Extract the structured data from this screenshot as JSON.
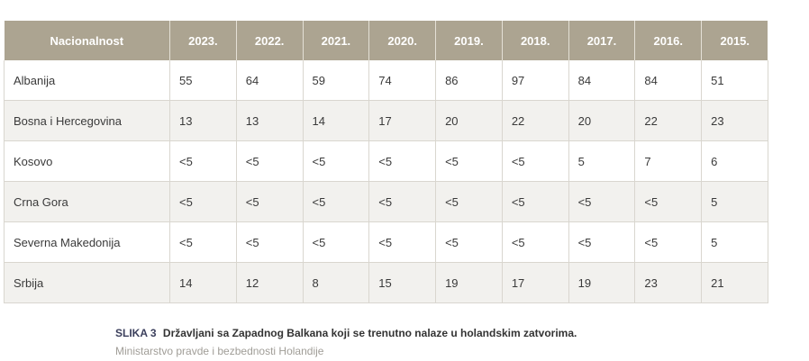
{
  "table": {
    "headers": [
      "Nacionalnost",
      "2023.",
      "2022.",
      "2021.",
      "2020.",
      "2019.",
      "2018.",
      "2017.",
      "2016.",
      "2015."
    ],
    "rows": [
      {
        "name": "Albanija",
        "values": [
          "55",
          "64",
          "59",
          "74",
          "86",
          "97",
          "84",
          "84",
          "51"
        ]
      },
      {
        "name": "Bosna i Hercegovina",
        "values": [
          "13",
          "13",
          "14",
          "17",
          "20",
          "22",
          "20",
          "22",
          "23"
        ]
      },
      {
        "name": "Kosovo",
        "values": [
          "<5",
          "<5",
          "<5",
          "<5",
          "<5",
          "<5",
          "5",
          "7",
          "6"
        ]
      },
      {
        "name": "Crna Gora",
        "values": [
          "<5",
          "<5",
          "<5",
          "<5",
          "<5",
          "<5",
          "<5",
          "<5",
          "5"
        ]
      },
      {
        "name": "Severna Makedonija",
        "values": [
          "<5",
          "<5",
          "<5",
          "<5",
          "<5",
          "<5",
          "<5",
          "<5",
          "5"
        ]
      },
      {
        "name": "Srbija",
        "values": [
          "14",
          "12",
          "8",
          "15",
          "19",
          "17",
          "19",
          "23",
          "21"
        ]
      }
    ]
  },
  "caption": {
    "label": "SLIKA 3",
    "text": "Državljani sa Zapadnog Balkana koji se trenutno nalaze u holandskim zatvorima.",
    "source": "Ministarstvo pravde i bezbednosti Holandije"
  },
  "colors": {
    "header_bg": "#aca491",
    "row_alt_bg": "#f2f1ee"
  }
}
